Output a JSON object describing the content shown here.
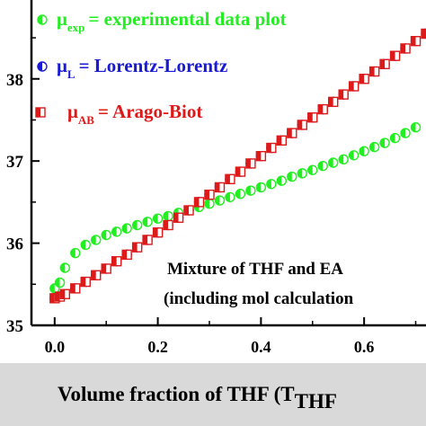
{
  "chart_data": {
    "type": "scatter",
    "xlabel_main": "Volume fraction of THF (T",
    "xlabel_sub": "THF",
    "x_ticks": [
      {
        "value": 0.0,
        "label": "0.0"
      },
      {
        "value": 0.2,
        "label": "0.2"
      },
      {
        "value": 0.4,
        "label": "0.4"
      },
      {
        "value": 0.6,
        "label": "0.6"
      }
    ],
    "y_ticks": [
      {
        "value": 1.35,
        "label": "35"
      },
      {
        "value": 1.36,
        "label": "36"
      },
      {
        "value": 1.37,
        "label": "37"
      },
      {
        "value": 1.38,
        "label": "38"
      }
    ],
    "xlim": [
      -0.045,
      0.72
    ],
    "ylim": [
      1.35,
      1.3896
    ],
    "legend_position": "top-left",
    "annotation": {
      "line1": "Mixture of THF and EA",
      "line2": "(including mol calculation"
    },
    "series": [
      {
        "name_main": "μ",
        "name_sub": "exp",
        "name_rest": "= experimental data plot",
        "color": "#22ee22",
        "marker": "half-circle",
        "x": [
          0.0,
          0.01,
          0.02,
          0.04,
          0.06,
          0.08,
          0.1,
          0.12,
          0.14,
          0.16,
          0.18,
          0.2,
          0.22,
          0.24,
          0.26,
          0.28,
          0.3,
          0.32,
          0.34,
          0.36,
          0.38,
          0.4,
          0.42,
          0.44,
          0.46,
          0.48,
          0.5,
          0.52,
          0.54,
          0.56,
          0.58,
          0.6,
          0.62,
          0.64,
          0.66,
          0.68,
          0.7
        ],
        "y": [
          1.3545,
          1.3552,
          1.357,
          1.3588,
          1.3598,
          1.3604,
          1.361,
          1.3614,
          1.3618,
          1.3622,
          1.3626,
          1.363,
          1.3633,
          1.3637,
          1.364,
          1.3644,
          1.3648,
          1.3652,
          1.3656,
          1.366,
          1.3664,
          1.3668,
          1.3672,
          1.3676,
          1.3681,
          1.3685,
          1.3689,
          1.3694,
          1.3698,
          1.3702,
          1.3707,
          1.3712,
          1.3717,
          1.3722,
          1.3728,
          1.3734,
          1.3741
        ]
      },
      {
        "name_main": "μ",
        "name_sub": "L",
        "name_rest": "= Lorentz-Lorentz",
        "color": "#1a1ad6",
        "marker": "half-circle",
        "x": [
          0.0,
          0.01,
          0.02,
          0.04,
          0.06,
          0.08,
          0.1,
          0.12,
          0.14,
          0.16,
          0.18,
          0.2,
          0.22,
          0.24,
          0.26,
          0.28,
          0.3,
          0.32,
          0.34,
          0.36,
          0.38,
          0.4,
          0.42,
          0.44,
          0.46,
          0.48,
          0.5,
          0.52,
          0.54,
          0.56,
          0.58,
          0.6,
          0.62,
          0.64,
          0.66,
          0.68,
          0.7,
          0.72
        ],
        "y": [
          1.3533,
          1.3535,
          1.3538,
          1.3545,
          1.3553,
          1.3561,
          1.3569,
          1.3578,
          1.3586,
          1.3595,
          1.3604,
          1.3613,
          1.3622,
          1.3631,
          1.364,
          1.365,
          1.3659,
          1.3668,
          1.3678,
          1.3687,
          1.3697,
          1.3706,
          1.3716,
          1.3725,
          1.3734,
          1.3744,
          1.3753,
          1.3763,
          1.3772,
          1.3781,
          1.3791,
          1.38,
          1.3809,
          1.3818,
          1.3828,
          1.3837,
          1.3846,
          1.3855
        ]
      },
      {
        "name_main": "μ",
        "name_sub": "AB",
        "name_rest": "= Arago-Biot",
        "color": "#dd1a1a",
        "marker": "half-square",
        "x": [
          0.0,
          0.01,
          0.02,
          0.04,
          0.06,
          0.08,
          0.1,
          0.12,
          0.14,
          0.16,
          0.18,
          0.2,
          0.22,
          0.24,
          0.26,
          0.28,
          0.3,
          0.32,
          0.34,
          0.36,
          0.38,
          0.4,
          0.42,
          0.44,
          0.46,
          0.48,
          0.5,
          0.52,
          0.54,
          0.56,
          0.58,
          0.6,
          0.62,
          0.64,
          0.66,
          0.68,
          0.7,
          0.72
        ],
        "y": [
          1.3533,
          1.3535,
          1.3538,
          1.3545,
          1.3553,
          1.3561,
          1.3569,
          1.3578,
          1.3586,
          1.3595,
          1.3604,
          1.3613,
          1.3622,
          1.3631,
          1.364,
          1.365,
          1.3659,
          1.3668,
          1.3678,
          1.3687,
          1.3697,
          1.3706,
          1.3716,
          1.3725,
          1.3734,
          1.3744,
          1.3753,
          1.3763,
          1.3772,
          1.3781,
          1.3791,
          1.38,
          1.3809,
          1.3818,
          1.3828,
          1.3837,
          1.3846,
          1.3855
        ]
      }
    ]
  }
}
